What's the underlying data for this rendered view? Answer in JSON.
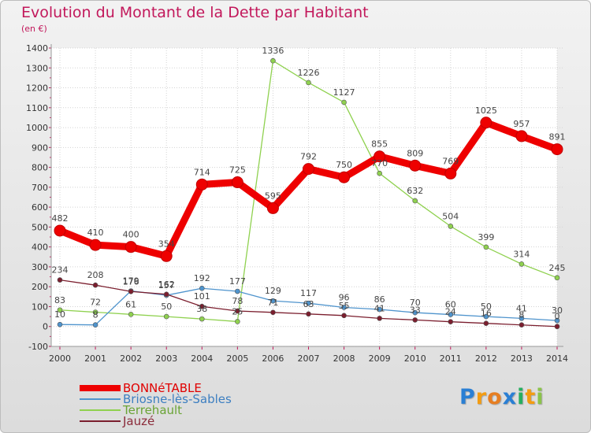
{
  "title": "Evolution du Montant de la Dette par Habitant",
  "subtitle": "(en €)",
  "logo": {
    "letters": [
      "P",
      "r",
      "o",
      "x",
      "i",
      "t",
      "i"
    ],
    "colors": [
      "#2a7fd4",
      "#f39c12",
      "#e67e22",
      "#2a7fd4",
      "#27ae60",
      "#f39c12",
      "#8bc34a"
    ]
  },
  "chart_data": {
    "type": "line",
    "title": "Evolution du Montant de la Dette par Habitant",
    "ylabel": "(en €)",
    "xlabel": "",
    "x": [
      "2000",
      "2001",
      "2002",
      "2003",
      "2004",
      "2005",
      "2006",
      "2007",
      "2008",
      "2009",
      "2010",
      "2011",
      "2012",
      "2013",
      "2014"
    ],
    "ylim": [
      -100,
      1400
    ],
    "yticks": [
      "-100",
      "0",
      "100",
      "200",
      "300",
      "400",
      "500",
      "600",
      "700",
      "800",
      "900",
      "1000",
      "1100",
      "1200",
      "1300",
      "1400"
    ],
    "grid": true,
    "legend": "bottom-left",
    "series": [
      {
        "name": "BONNéTABLE",
        "color": "#ee0000",
        "values": [
          482,
          410,
          400,
          354,
          714,
          725,
          595,
          792,
          750,
          855,
          809,
          769,
          1025,
          957,
          891
        ],
        "labels": [
          "482",
          "410",
          "400",
          "354",
          "714",
          "725",
          "595",
          "792",
          "750",
          "855",
          "809",
          "769",
          "1025",
          "957",
          "891"
        ]
      },
      {
        "name": "Briosne-lès-Sables",
        "color": "#4f94cd",
        "values": [
          10,
          8,
          179,
          157,
          192,
          177,
          129,
          117,
          96,
          86,
          70,
          60,
          50,
          41,
          30
        ],
        "labels": [
          "10",
          "8",
          "179",
          "157",
          "192",
          "177",
          "129",
          "117",
          "96",
          "86",
          "70",
          "60",
          "50",
          "41",
          "30"
        ]
      },
      {
        "name": "Terrehault",
        "color": "#8fd14f",
        "values": [
          83,
          72,
          61,
          50,
          38,
          25,
          1336,
          1226,
          1127,
          770,
          632,
          504,
          399,
          314,
          245
        ],
        "labels": [
          "83",
          "72",
          "61",
          "50",
          "38",
          "25",
          "1336",
          "1226",
          "1127",
          "770",
          "632",
          "504",
          "399",
          "314",
          "245"
        ]
      },
      {
        "name": "Jauzé",
        "color": "#7b1e2e",
        "values": [
          234,
          208,
          176,
          162,
          101,
          78,
          71,
          63,
          55,
          41,
          33,
          24,
          16,
          8,
          0
        ],
        "labels": [
          "234",
          "208",
          "176",
          "162",
          "101",
          "78",
          "71",
          "63",
          "55",
          "41",
          "33",
          "24",
          "16",
          "8",
          "0"
        ]
      }
    ]
  }
}
